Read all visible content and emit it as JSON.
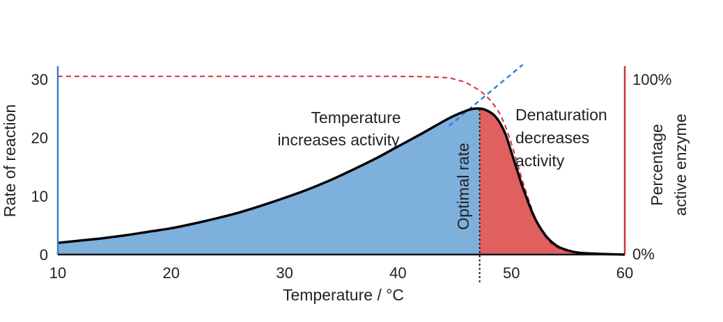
{
  "chart_data": {
    "type": "area",
    "xlabel": "Temperature / °C",
    "ylabel": "Rate of reaction",
    "y2label_line1": "Percentage",
    "y2label_line2": "active enzyme",
    "xlim": [
      10,
      60
    ],
    "ylim": [
      0,
      30
    ],
    "x_ticks": [
      10,
      20,
      30,
      40,
      50,
      60
    ],
    "y_ticks": [
      0,
      10,
      20,
      30
    ],
    "y2_ticks": [
      "0%",
      "100%"
    ],
    "optimal_temperature": 47.2,
    "rate_curve": {
      "x": [
        10,
        12,
        14,
        16,
        18,
        20,
        22,
        24,
        26,
        28,
        30,
        32,
        34,
        36,
        38,
        40,
        42,
        44,
        45,
        46,
        46.5,
        47,
        47.5,
        48,
        48.5,
        49,
        49.5,
        50,
        50.5,
        51,
        52,
        53,
        54,
        55,
        56,
        58,
        60
      ],
      "y": [
        2.0,
        2.4,
        2.8,
        3.3,
        3.9,
        4.5,
        5.3,
        6.2,
        7.2,
        8.4,
        9.7,
        11.1,
        12.7,
        14.5,
        16.4,
        18.5,
        20.6,
        22.8,
        23.8,
        24.6,
        24.9,
        25.0,
        24.9,
        24.5,
        23.8,
        22.5,
        20.5,
        17.5,
        14.5,
        11.5,
        6.5,
        3.3,
        1.5,
        0.7,
        0.3,
        0.1,
        0.0
      ]
    },
    "active_enzyme_curve": {
      "x": [
        10,
        20,
        30,
        40,
        44,
        45,
        46,
        47,
        47.5,
        48,
        48.5,
        49,
        49.5,
        50,
        50.5,
        51,
        52,
        53,
        54,
        56,
        60
      ],
      "y": [
        30.5,
        30.5,
        30.5,
        30.5,
        30.3,
        30.0,
        29.4,
        28.3,
        27.6,
        26.7,
        25.5,
        24.0,
        21.8,
        19.0,
        15.8,
        12.5,
        6.8,
        3.0,
        1.2,
        0.2,
        0.0
      ]
    },
    "trend_line": {
      "x": [
        44.5,
        51.0
      ],
      "y": [
        22.0,
        32.5
      ]
    }
  },
  "annotations": {
    "increase_line1": "Temperature",
    "increase_line2": "increases activity",
    "decrease_line1": "Denaturation",
    "decrease_line2": "decreases",
    "decrease_line3": "activity",
    "optimal": "Optimal rate"
  },
  "colors": {
    "blue_fill": "#7eb0dc",
    "red_fill": "#e06060",
    "curve": "#000000",
    "left_axis": "#3a7fcf",
    "right_axis": "#d0303a",
    "enzyme_dash": "#d0303a",
    "trend_dash": "#3a7fcf"
  }
}
